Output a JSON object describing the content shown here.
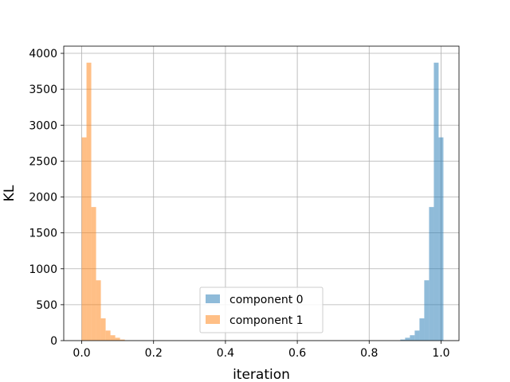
{
  "chart_data": {
    "type": "bar",
    "title": "",
    "xlabel": "iteration",
    "ylabel": "KL",
    "xlim": [
      -0.05,
      1.05
    ],
    "ylim": [
      0,
      4100
    ],
    "grid": true,
    "legend_position": "bottom-center",
    "x_ticks": [
      0.0,
      0.2,
      0.4,
      0.6,
      0.8,
      1.0
    ],
    "x_tick_labels": [
      "0.0",
      "0.2",
      "0.4",
      "0.6",
      "0.8",
      "1.0"
    ],
    "y_ticks": [
      0,
      500,
      1000,
      1500,
      2000,
      2500,
      3000,
      3500,
      4000
    ],
    "y_tick_labels": [
      "0",
      "500",
      "1000",
      "1500",
      "2000",
      "2500",
      "3000",
      "3500",
      "4000"
    ],
    "bin_width": 0.0133,
    "series": [
      {
        "name": "component 0",
        "color": "#1f77b4",
        "bin_starts": [
          0.8867,
          0.9,
          0.9133,
          0.9267,
          0.94,
          0.9533,
          0.9667,
          0.98,
          0.9933
        ],
        "counts": [
          15,
          40,
          75,
          140,
          310,
          840,
          1860,
          3870,
          2830
        ]
      },
      {
        "name": "component 1",
        "color": "#ff7f0e",
        "bin_starts": [
          0.0,
          0.0133,
          0.0267,
          0.04,
          0.0533,
          0.0667,
          0.08,
          0.0933,
          0.1067
        ],
        "counts": [
          2830,
          3870,
          1860,
          840,
          310,
          140,
          75,
          40,
          15
        ]
      }
    ]
  }
}
